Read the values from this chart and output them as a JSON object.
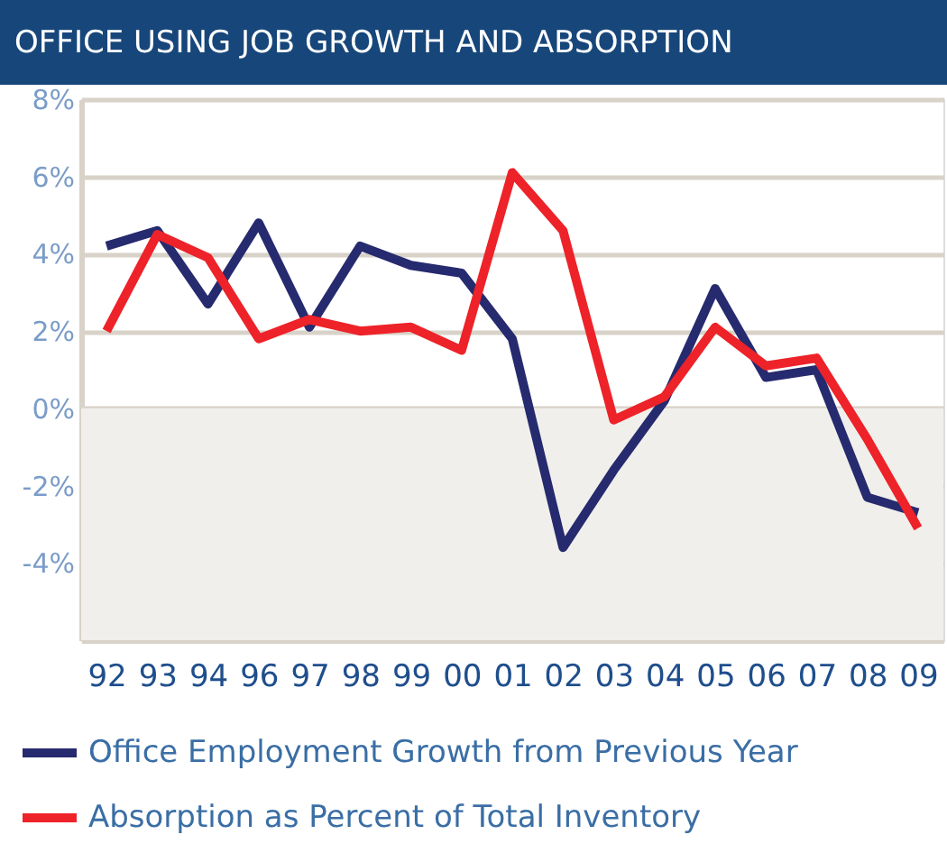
{
  "chart_data": {
    "type": "line",
    "title": "OFFICE USING JOB GROWTH AND ABSORPTION",
    "categories": [
      "92",
      "93",
      "94",
      "96",
      "97",
      "98",
      "99",
      "00",
      "01",
      "02",
      "03",
      "04",
      "05",
      "06",
      "07",
      "08",
      "09"
    ],
    "series": [
      {
        "name": "Office Employment Growth from Previous Year",
        "color": "#262a6e",
        "values": [
          4.2,
          4.6,
          2.7,
          4.8,
          2.1,
          4.2,
          3.7,
          3.5,
          1.8,
          -3.6,
          -1.6,
          0.2,
          3.1,
          0.8,
          1.0,
          -2.3,
          -2.7
        ]
      },
      {
        "name": "Absorption as Percent of Total Inventory",
        "color": "#ee2229",
        "values": [
          2.0,
          4.5,
          3.9,
          1.8,
          2.3,
          2.0,
          2.1,
          1.5,
          6.1,
          4.6,
          -0.3,
          0.3,
          2.1,
          1.1,
          1.3,
          -0.8,
          -3.1
        ]
      }
    ],
    "ylim": [
      -6,
      8
    ],
    "yticks": [
      {
        "value": -6,
        "label": null
      },
      {
        "value": -4,
        "label": "-4%"
      },
      {
        "value": -2,
        "label": "-2%"
      },
      {
        "value": 0,
        "label": "0%"
      },
      {
        "value": 2,
        "label": "2%"
      },
      {
        "value": 4,
        "label": "4%"
      },
      {
        "value": 6,
        "label": "6%"
      },
      {
        "value": 8,
        "label": "8%"
      }
    ],
    "bands": [
      {
        "axis": "y",
        "from": -6,
        "to": 0,
        "color": "#f1efeb"
      }
    ],
    "grid": "y",
    "legend": "bottom left",
    "line_style": "solid"
  }
}
